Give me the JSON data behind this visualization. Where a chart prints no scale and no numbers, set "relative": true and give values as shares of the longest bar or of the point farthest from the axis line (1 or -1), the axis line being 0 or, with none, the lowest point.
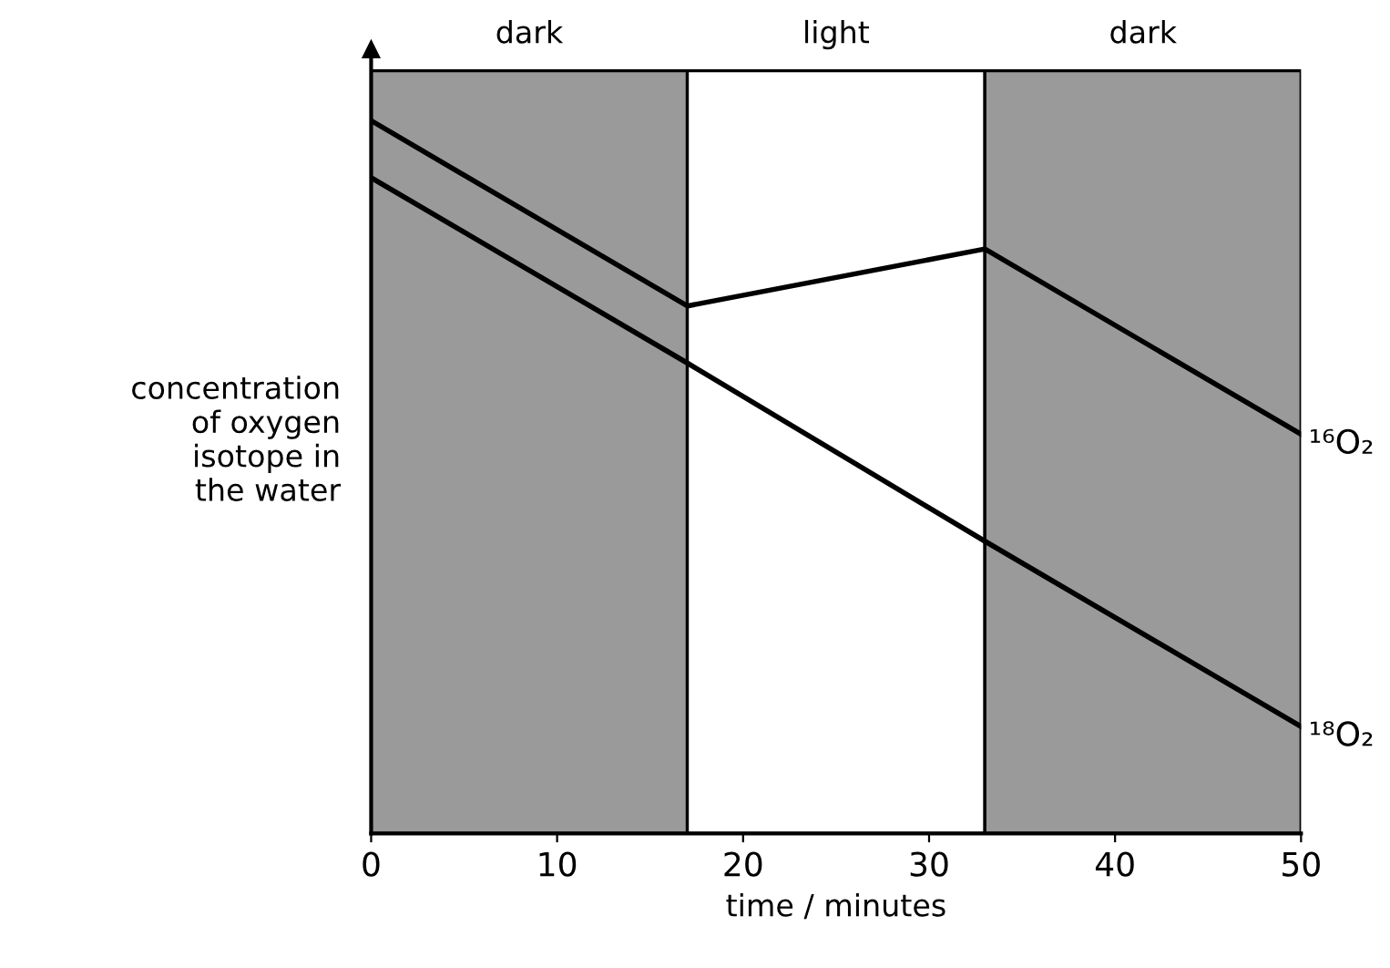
{
  "chart_data": {
    "type": "line",
    "relative": true,
    "xlabel": "time / minutes",
    "ylabel": "concentration\nof oxygen\nisotope in\nthe water",
    "x": [
      0,
      17,
      33,
      50
    ],
    "series": [
      {
        "name": "¹⁶O₂",
        "color": "#000000",
        "values": [
          1,
          0.74,
          0.82,
          0.56
        ]
      },
      {
        "name": "¹⁸O₂",
        "color": "#000000",
        "values": [
          0.92,
          0.66,
          0.41,
          0.15
        ]
      }
    ],
    "bands": [
      {
        "axis": "x",
        "from": 0,
        "to": 17,
        "label": "dark",
        "color": "#9a9a9a"
      },
      {
        "axis": "x",
        "from": 17,
        "to": 33,
        "label": "light",
        "color": "#ffffff"
      },
      {
        "axis": "x",
        "from": 33,
        "to": 50,
        "label": "dark",
        "color": "#9a9a9a"
      }
    ],
    "xlim": [
      0,
      50
    ],
    "xticks": [
      0,
      10,
      20,
      30,
      40,
      50
    ],
    "grid": false,
    "legend": false,
    "marker": "none",
    "line_style": "solid",
    "tick_labels": "x"
  }
}
